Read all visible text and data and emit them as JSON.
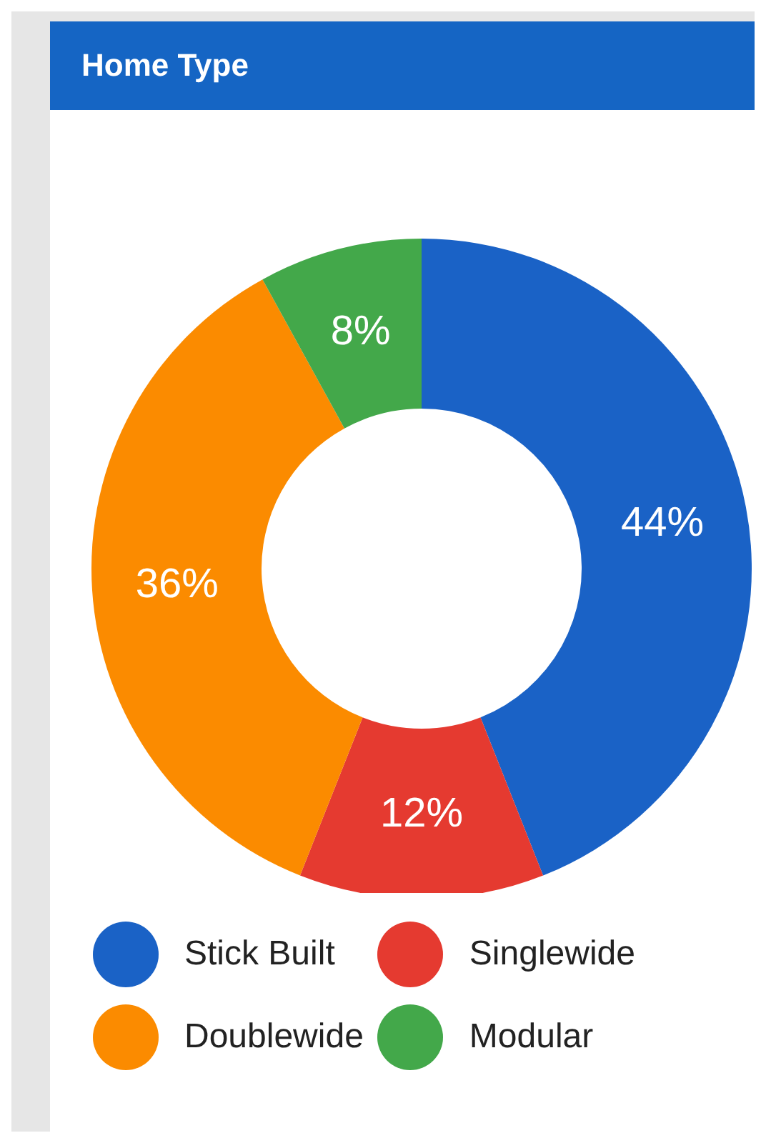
{
  "chart_data": {
    "type": "donut",
    "title": "Home Type",
    "categories": [
      "Stick Built",
      "Singlewide",
      "Doublewide",
      "Modular"
    ],
    "values": [
      44,
      12,
      36,
      8
    ],
    "colors": [
      "#1a62c6",
      "#e53a30",
      "#fb8b00",
      "#43a84a"
    ],
    "value_labels": [
      "44%",
      "12%",
      "36%",
      "8%"
    ],
    "legend": "bottom"
  }
}
